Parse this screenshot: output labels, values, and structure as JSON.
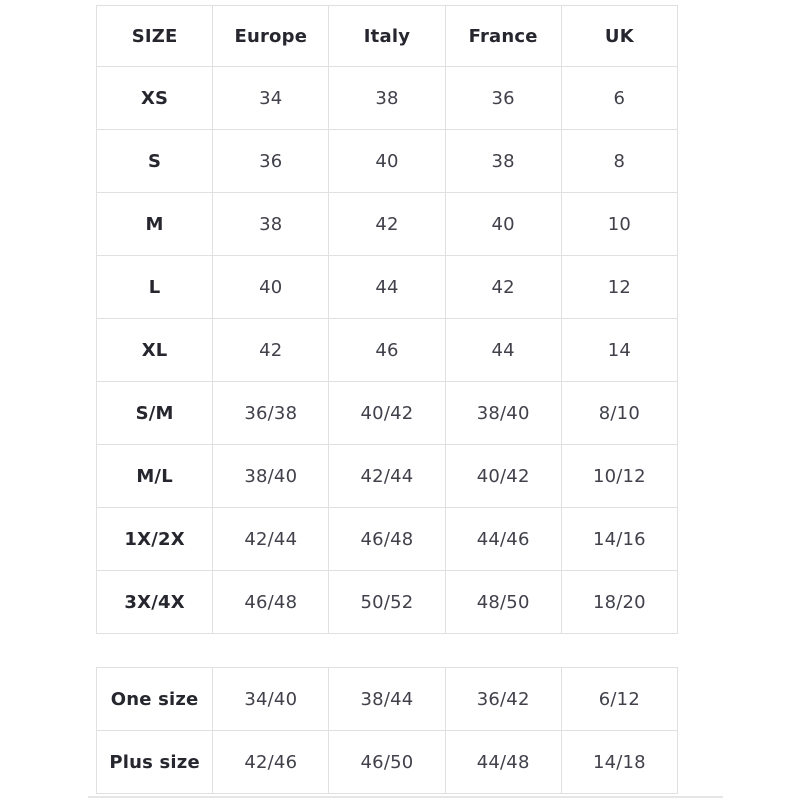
{
  "colors": {
    "border": "#e0e0e0",
    "header_text": "#26262e",
    "cell_text": "#41414b",
    "background": "#ffffff"
  },
  "table1": {
    "headers": [
      "SIZE",
      "Europe",
      "Italy",
      "France",
      "UK"
    ],
    "rows": [
      {
        "label": "XS",
        "europe": "34",
        "italy": "38",
        "france": "36",
        "uk": "6"
      },
      {
        "label": "S",
        "europe": "36",
        "italy": "40",
        "france": "38",
        "uk": "8"
      },
      {
        "label": "M",
        "europe": "38",
        "italy": "42",
        "france": "40",
        "uk": "10"
      },
      {
        "label": "L",
        "europe": "40",
        "italy": "44",
        "france": "42",
        "uk": "12"
      },
      {
        "label": "XL",
        "europe": "42",
        "italy": "46",
        "france": "44",
        "uk": "14"
      },
      {
        "label": "S/M",
        "europe": "36/38",
        "italy": "40/42",
        "france": "38/40",
        "uk": "8/10"
      },
      {
        "label": "M/L",
        "europe": "38/40",
        "italy": "42/44",
        "france": "40/42",
        "uk": "10/12"
      },
      {
        "label": "1X/2X",
        "europe": "42/44",
        "italy": "46/48",
        "france": "44/46",
        "uk": "14/16"
      },
      {
        "label": "3X/4X",
        "europe": "46/48",
        "italy": "50/52",
        "france": "48/50",
        "uk": "18/20"
      }
    ]
  },
  "table2": {
    "rows": [
      {
        "label": "One size",
        "europe": "34/40",
        "italy": "38/44",
        "france": "36/42",
        "uk": "6/12"
      },
      {
        "label": "Plus size",
        "europe": "42/46",
        "italy": "46/50",
        "france": "44/48",
        "uk": "14/18"
      }
    ]
  }
}
